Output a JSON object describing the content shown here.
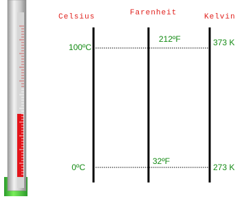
{
  "scales": [
    {
      "name": "Celsius",
      "high": "100ºC",
      "low": "0ºC"
    },
    {
      "name": "Farenheit",
      "high": "212ºF",
      "low": "32ºF"
    },
    {
      "name": "Kelvin",
      "high": "373 K",
      "low": "273 K"
    }
  ]
}
